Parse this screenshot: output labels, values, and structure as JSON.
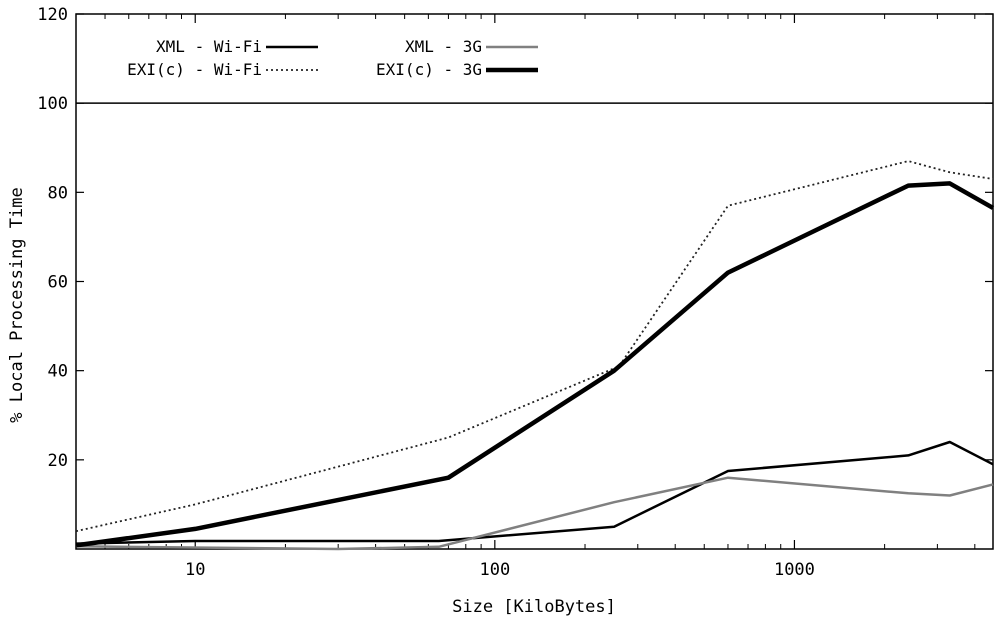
{
  "chart_data": {
    "type": "line",
    "title": "",
    "xlabel": "Size [KiloBytes]",
    "ylabel": "% Local Processing Time",
    "xscale": "log",
    "xlim": [
      4,
      4600
    ],
    "ylim": [
      0,
      120
    ],
    "x_ticks": [
      10,
      100,
      1000
    ],
    "x_tick_labels": [
      "10",
      "100",
      "1000"
    ],
    "y_ticks": [
      20,
      40,
      60,
      80,
      100,
      120
    ],
    "y_tick_labels": [
      "20",
      "40",
      "60",
      "80",
      "100",
      "120"
    ],
    "reference_line": 100,
    "grid": false,
    "legend_position": "top-left",
    "series": [
      {
        "name": "XML - Wi-Fi",
        "style": "thin-black-solid",
        "color": "#000000",
        "points": [
          [
            4,
            1.2
          ],
          [
            10,
            1.8
          ],
          [
            65,
            1.8
          ],
          [
            250,
            5.0
          ],
          [
            600,
            17.5
          ],
          [
            2400,
            21.0
          ],
          [
            3300,
            24.0
          ],
          [
            4600,
            19.0
          ]
        ]
      },
      {
        "name": "EXI(c) - Wi-Fi",
        "style": "dotted",
        "color": "#000000",
        "points": [
          [
            4,
            4.0
          ],
          [
            10,
            10.0
          ],
          [
            70,
            25.0
          ],
          [
            260,
            41.0
          ],
          [
            600,
            77.0
          ],
          [
            2400,
            87.0
          ],
          [
            3300,
            84.5
          ],
          [
            4600,
            83.0
          ]
        ]
      },
      {
        "name": "XML - 3G",
        "style": "gray-solid",
        "color": "#808080",
        "points": [
          [
            4,
            0.6
          ],
          [
            30,
            0.0
          ],
          [
            65,
            0.5
          ],
          [
            250,
            10.5
          ],
          [
            600,
            16.0
          ],
          [
            2400,
            12.5
          ],
          [
            3300,
            12.0
          ],
          [
            4600,
            14.5
          ]
        ]
      },
      {
        "name": "EXI(c) - 3G",
        "style": "thick-black-solid",
        "color": "#000000",
        "points": [
          [
            4,
            0.8
          ],
          [
            10,
            4.5
          ],
          [
            70,
            16.0
          ],
          [
            250,
            40.0
          ],
          [
            600,
            62.0
          ],
          [
            2400,
            81.5
          ],
          [
            3300,
            82.0
          ],
          [
            4600,
            76.5
          ]
        ]
      }
    ]
  }
}
